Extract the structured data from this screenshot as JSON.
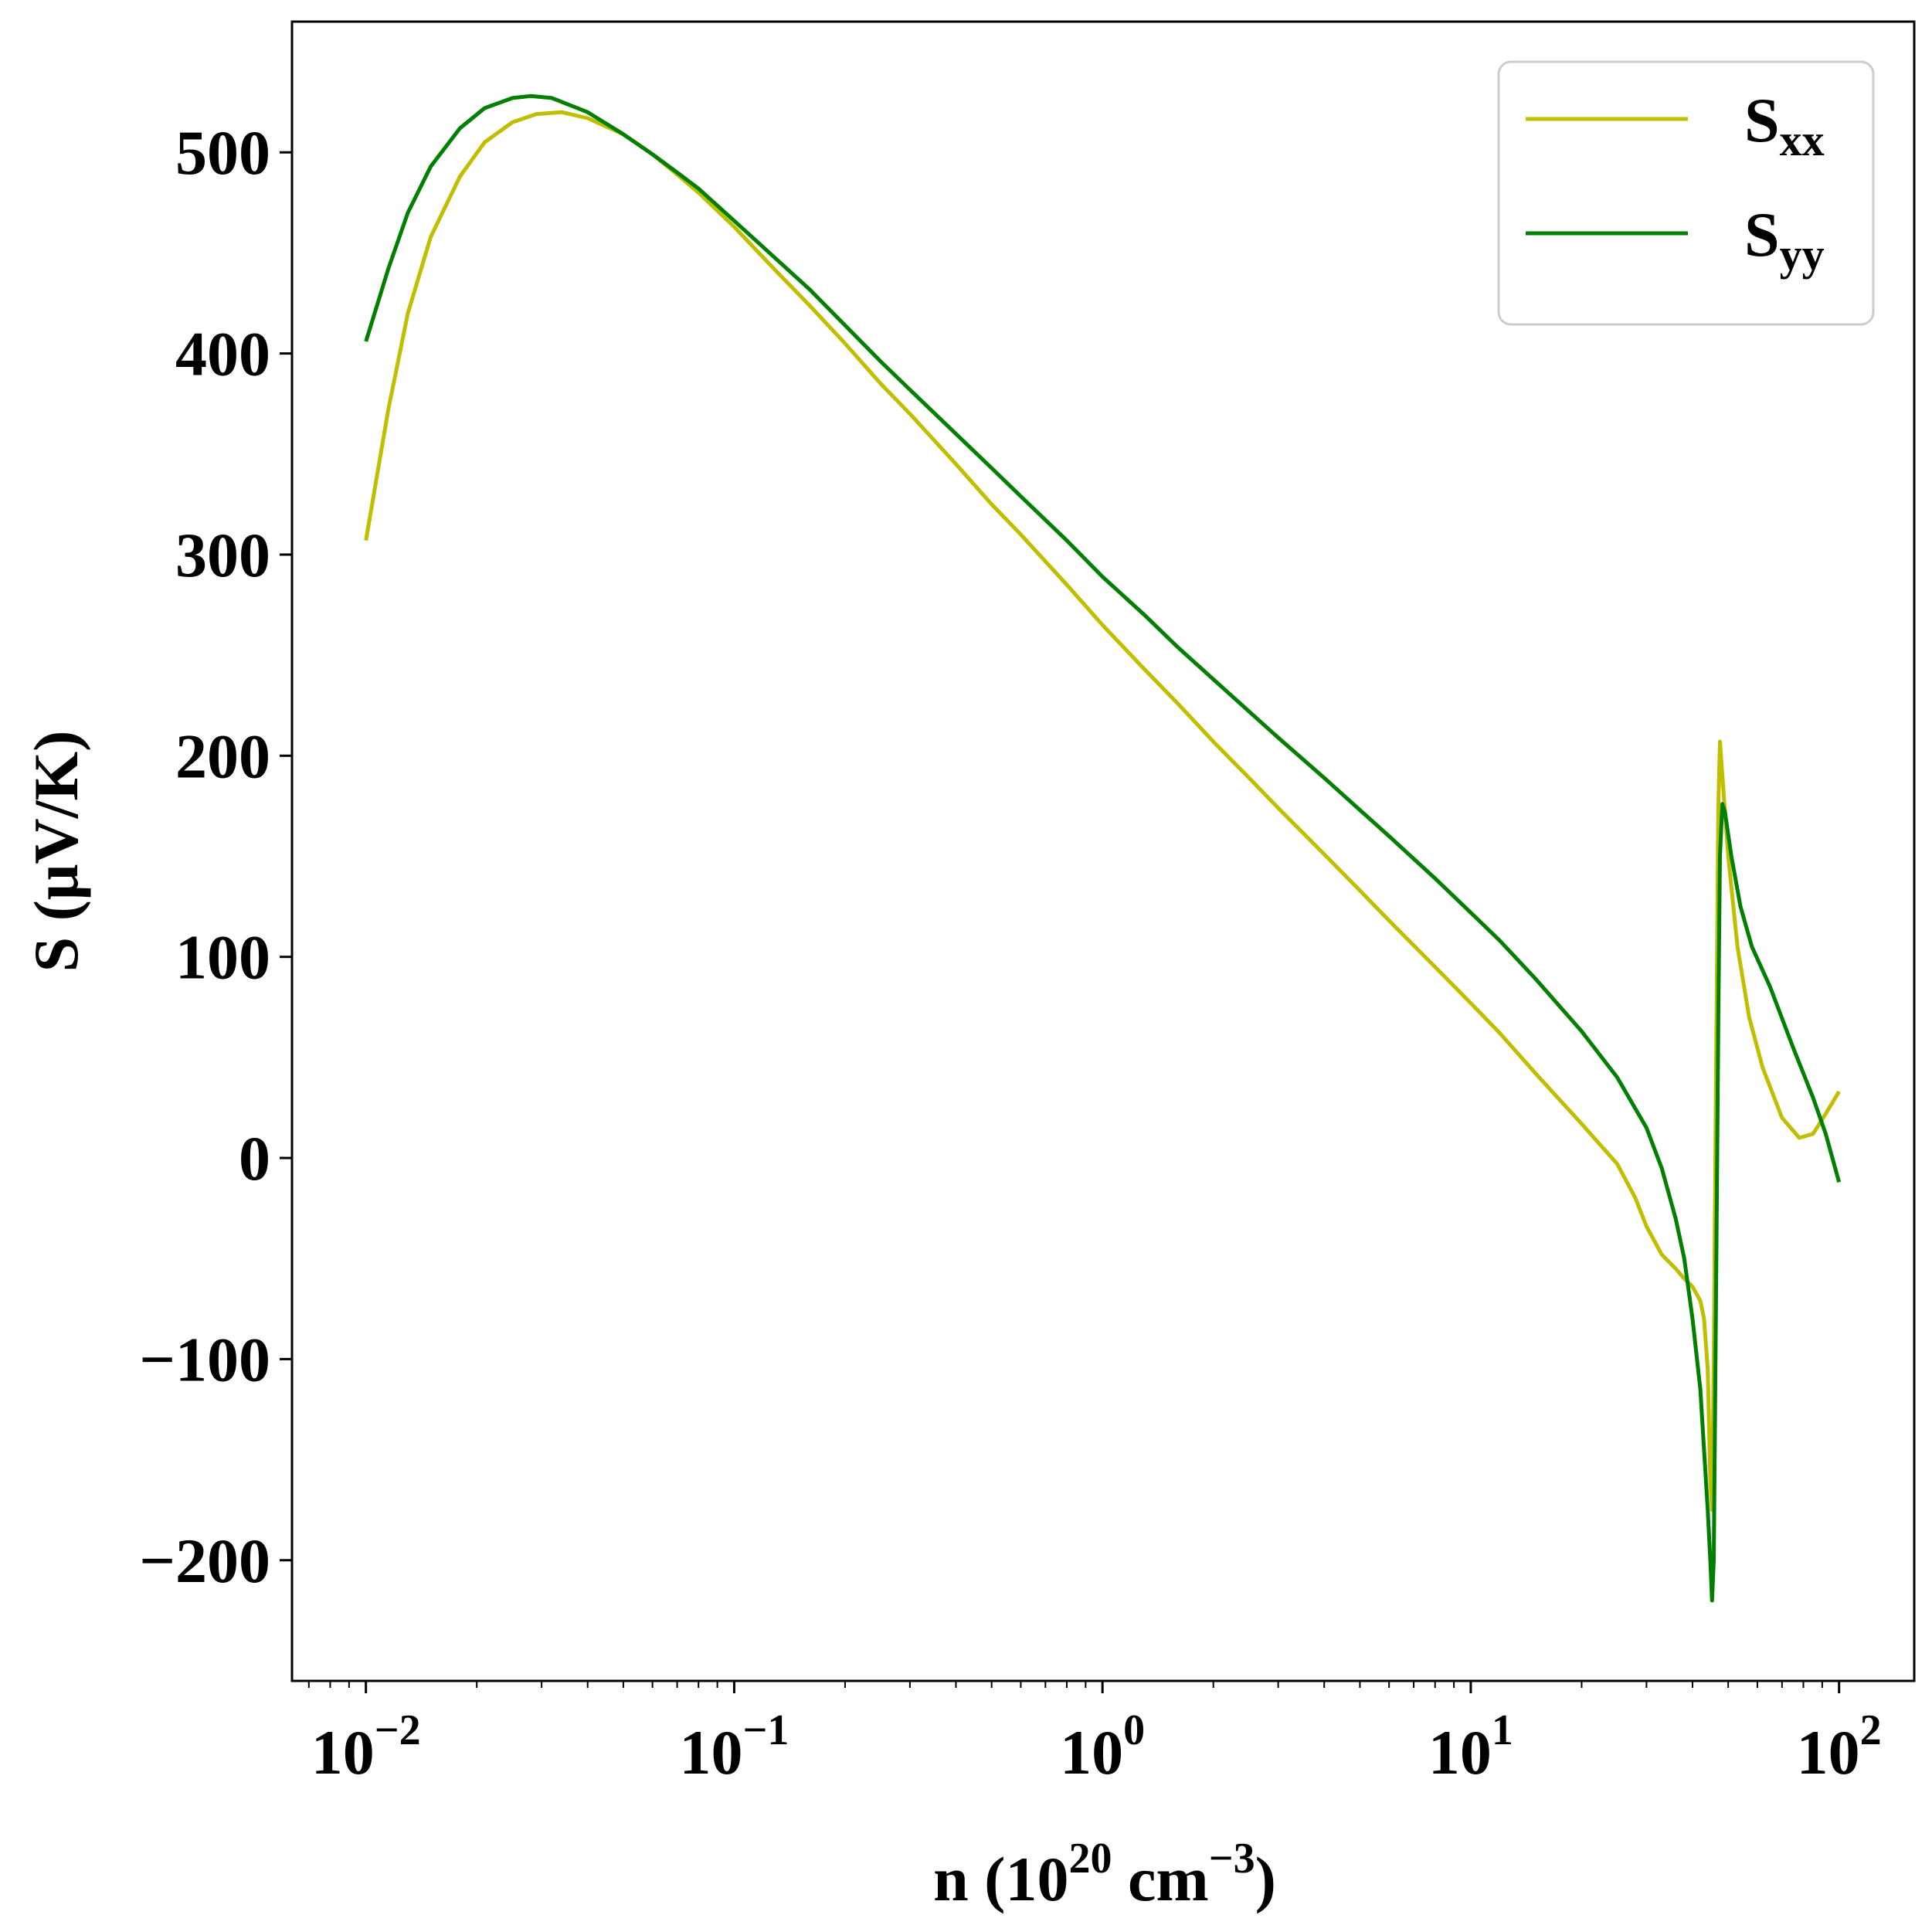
{
  "chart_data": {
    "type": "line",
    "title": "",
    "xlabel": {
      "base": "n (10",
      "exp1": "20",
      "mid": " cm",
      "exp2": "−3",
      "end": ")"
    },
    "ylabel": "S (μV/K)",
    "xscale": "log",
    "xlim": [
      0.0063,
      160
    ],
    "ylim": [
      -260,
      565
    ],
    "grid": false,
    "legend_position": "top-right",
    "x_ticks": [
      {
        "value": 0.01,
        "base": "10",
        "exp": "−2"
      },
      {
        "value": 0.1,
        "base": "10",
        "exp": "−1"
      },
      {
        "value": 1,
        "base": "10",
        "exp": "0"
      },
      {
        "value": 10,
        "base": "10",
        "exp": "1"
      },
      {
        "value": 100,
        "base": "10",
        "exp": "2"
      }
    ],
    "y_ticks": [
      {
        "value": -200,
        "label": "−200"
      },
      {
        "value": -100,
        "label": "−100"
      },
      {
        "value": 0,
        "label": "0"
      },
      {
        "value": 100,
        "label": "100"
      },
      {
        "value": 200,
        "label": "200"
      },
      {
        "value": 300,
        "label": "300"
      },
      {
        "value": 400,
        "label": "400"
      },
      {
        "value": 500,
        "label": "500"
      }
    ],
    "series": [
      {
        "name": "S",
        "subscript": "xx",
        "color": "#bfbf00",
        "points": [
          [
            0.01,
            307
          ],
          [
            0.0115,
            372
          ],
          [
            0.013,
            420
          ],
          [
            0.015,
            458
          ],
          [
            0.018,
            488
          ],
          [
            0.021,
            505
          ],
          [
            0.025,
            515
          ],
          [
            0.029,
            519
          ],
          [
            0.034,
            520
          ],
          [
            0.04,
            517
          ],
          [
            0.05,
            509
          ],
          [
            0.06,
            499
          ],
          [
            0.07,
            489
          ],
          [
            0.08,
            480
          ],
          [
            0.1,
            463
          ],
          [
            0.13,
            441
          ],
          [
            0.16,
            424
          ],
          [
            0.2,
            405
          ],
          [
            0.25,
            385
          ],
          [
            0.3,
            370
          ],
          [
            0.4,
            345
          ],
          [
            0.5,
            325
          ],
          [
            0.6,
            310
          ],
          [
            0.8,
            285
          ],
          [
            1.0,
            265
          ],
          [
            1.3,
            243
          ],
          [
            1.6,
            226
          ],
          [
            2,
            207
          ],
          [
            2.5,
            189
          ],
          [
            3,
            174
          ],
          [
            4,
            151
          ],
          [
            5,
            133
          ],
          [
            6,
            118
          ],
          [
            8,
            95
          ],
          [
            10,
            77
          ],
          [
            12,
            62
          ],
          [
            15,
            42
          ],
          [
            20,
            17
          ],
          [
            25,
            -3
          ],
          [
            28,
            -20
          ],
          [
            30,
            -34
          ],
          [
            33,
            -48
          ],
          [
            36,
            -55
          ],
          [
            38,
            -60
          ],
          [
            40,
            -64
          ],
          [
            42,
            -71
          ],
          [
            43,
            -80
          ],
          [
            44,
            -105
          ],
          [
            44.7,
            -160
          ],
          [
            45.2,
            -175
          ],
          [
            45.7,
            -100
          ],
          [
            46.3,
            30
          ],
          [
            47,
            175
          ],
          [
            47.5,
            207
          ],
          [
            48,
            195
          ],
          [
            50,
            150
          ],
          [
            53,
            105
          ],
          [
            57,
            70
          ],
          [
            62,
            45
          ],
          [
            70,
            20
          ],
          [
            78,
            10
          ],
          [
            85,
            12
          ],
          [
            92,
            22
          ],
          [
            100,
            33
          ]
        ]
      },
      {
        "name": "S",
        "subscript": "yy",
        "color": "#007f00",
        "points": [
          [
            0.01,
            406
          ],
          [
            0.0115,
            442
          ],
          [
            0.013,
            470
          ],
          [
            0.015,
            493
          ],
          [
            0.018,
            512
          ],
          [
            0.021,
            522
          ],
          [
            0.025,
            527
          ],
          [
            0.028,
            528
          ],
          [
            0.032,
            527
          ],
          [
            0.04,
            520
          ],
          [
            0.05,
            509
          ],
          [
            0.06,
            499
          ],
          [
            0.07,
            490
          ],
          [
            0.08,
            482
          ],
          [
            0.1,
            466
          ],
          [
            0.13,
            447
          ],
          [
            0.16,
            432
          ],
          [
            0.2,
            414
          ],
          [
            0.25,
            396
          ],
          [
            0.3,
            382
          ],
          [
            0.4,
            360
          ],
          [
            0.5,
            343
          ],
          [
            0.6,
            329
          ],
          [
            0.8,
            307
          ],
          [
            1.0,
            289
          ],
          [
            1.3,
            270
          ],
          [
            1.6,
            254
          ],
          [
            2,
            238
          ],
          [
            2.5,
            222
          ],
          [
            3,
            209
          ],
          [
            4,
            189
          ],
          [
            5,
            173
          ],
          [
            6,
            160
          ],
          [
            8,
            139
          ],
          [
            10,
            122
          ],
          [
            12,
            108
          ],
          [
            15,
            89
          ],
          [
            20,
            63
          ],
          [
            25,
            40
          ],
          [
            30,
            15
          ],
          [
            33,
            -5
          ],
          [
            36,
            -30
          ],
          [
            38,
            -50
          ],
          [
            40,
            -80
          ],
          [
            42,
            -115
          ],
          [
            43,
            -145
          ],
          [
            44,
            -175
          ],
          [
            44.7,
            -200
          ],
          [
            45.2,
            -220
          ],
          [
            45.7,
            -200
          ],
          [
            46.3,
            -80
          ],
          [
            47,
            70
          ],
          [
            47.5,
            150
          ],
          [
            48.2,
            176
          ],
          [
            49,
            172
          ],
          [
            51,
            150
          ],
          [
            54,
            125
          ],
          [
            58,
            105
          ],
          [
            65,
            85
          ],
          [
            75,
            55
          ],
          [
            85,
            30
          ],
          [
            92,
            12
          ],
          [
            100,
            -12
          ]
        ]
      }
    ]
  }
}
